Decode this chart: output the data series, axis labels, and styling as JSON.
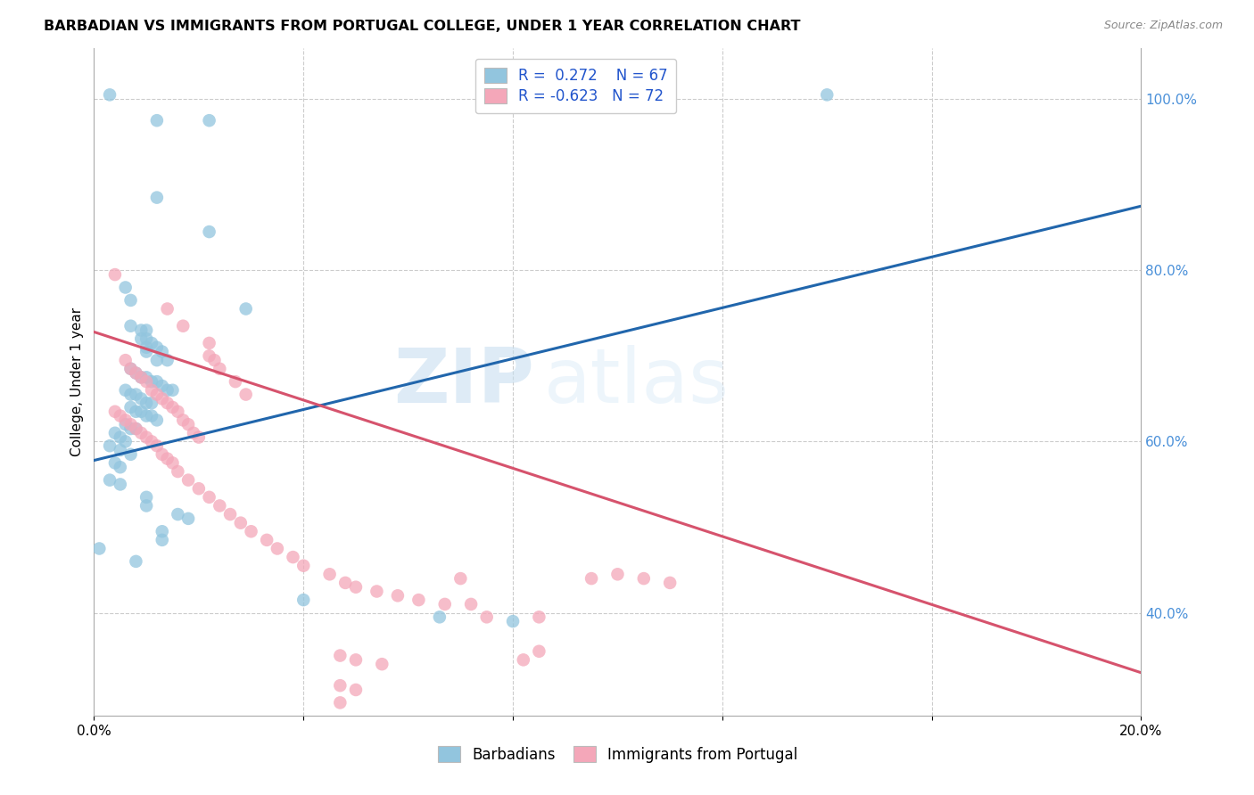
{
  "title": "BARBADIAN VS IMMIGRANTS FROM PORTUGAL COLLEGE, UNDER 1 YEAR CORRELATION CHART",
  "source": "Source: ZipAtlas.com",
  "ylabel": "College, Under 1 year",
  "x_min": 0.0,
  "x_max": 0.2,
  "y_min": 0.28,
  "y_max": 1.06,
  "x_ticks": [
    0.0,
    0.04,
    0.08,
    0.12,
    0.16,
    0.2
  ],
  "x_tick_labels": [
    "0.0%",
    "",
    "",
    "",
    "",
    "20.0%"
  ],
  "y_ticks_right": [
    0.4,
    0.6,
    0.8,
    1.0
  ],
  "y_tick_labels_right": [
    "40.0%",
    "60.0%",
    "80.0%",
    "100.0%"
  ],
  "legend_r1": "R =  0.272",
  "legend_n1": "N = 67",
  "legend_r2": "R = -0.623",
  "legend_n2": "N = 72",
  "blue_color": "#92c5de",
  "pink_color": "#f4a7b9",
  "blue_line_color": "#2166ac",
  "pink_line_color": "#d6536d",
  "watermark_zip": "ZIP",
  "watermark_atlas": "atlas",
  "blue_points": [
    [
      0.003,
      1.005
    ],
    [
      0.012,
      0.975
    ],
    [
      0.022,
      0.975
    ],
    [
      0.012,
      0.885
    ],
    [
      0.022,
      0.845
    ],
    [
      0.029,
      0.755
    ],
    [
      0.007,
      0.735
    ],
    [
      0.01,
      0.705
    ],
    [
      0.012,
      0.695
    ],
    [
      0.006,
      0.78
    ],
    [
      0.007,
      0.765
    ],
    [
      0.01,
      0.73
    ],
    [
      0.009,
      0.73
    ],
    [
      0.009,
      0.72
    ],
    [
      0.01,
      0.72
    ],
    [
      0.01,
      0.71
    ],
    [
      0.011,
      0.715
    ],
    [
      0.012,
      0.71
    ],
    [
      0.013,
      0.705
    ],
    [
      0.014,
      0.695
    ],
    [
      0.007,
      0.685
    ],
    [
      0.008,
      0.68
    ],
    [
      0.009,
      0.675
    ],
    [
      0.01,
      0.675
    ],
    [
      0.011,
      0.67
    ],
    [
      0.012,
      0.67
    ],
    [
      0.013,
      0.665
    ],
    [
      0.014,
      0.66
    ],
    [
      0.015,
      0.66
    ],
    [
      0.006,
      0.66
    ],
    [
      0.007,
      0.655
    ],
    [
      0.008,
      0.655
    ],
    [
      0.009,
      0.65
    ],
    [
      0.01,
      0.645
    ],
    [
      0.011,
      0.645
    ],
    [
      0.007,
      0.64
    ],
    [
      0.008,
      0.635
    ],
    [
      0.009,
      0.635
    ],
    [
      0.01,
      0.63
    ],
    [
      0.011,
      0.63
    ],
    [
      0.012,
      0.625
    ],
    [
      0.006,
      0.62
    ],
    [
      0.007,
      0.615
    ],
    [
      0.008,
      0.615
    ],
    [
      0.004,
      0.61
    ],
    [
      0.005,
      0.605
    ],
    [
      0.006,
      0.6
    ],
    [
      0.003,
      0.595
    ],
    [
      0.005,
      0.59
    ],
    [
      0.007,
      0.585
    ],
    [
      0.004,
      0.575
    ],
    [
      0.005,
      0.57
    ],
    [
      0.003,
      0.555
    ],
    [
      0.005,
      0.55
    ],
    [
      0.01,
      0.535
    ],
    [
      0.01,
      0.525
    ],
    [
      0.016,
      0.515
    ],
    [
      0.018,
      0.51
    ],
    [
      0.013,
      0.495
    ],
    [
      0.013,
      0.485
    ],
    [
      0.001,
      0.475
    ],
    [
      0.008,
      0.46
    ],
    [
      0.04,
      0.415
    ],
    [
      0.066,
      0.395
    ],
    [
      0.08,
      0.39
    ],
    [
      0.14,
      1.005
    ]
  ],
  "pink_points": [
    [
      0.004,
      0.795
    ],
    [
      0.014,
      0.755
    ],
    [
      0.017,
      0.735
    ],
    [
      0.022,
      0.715
    ],
    [
      0.022,
      0.7
    ],
    [
      0.023,
      0.695
    ],
    [
      0.024,
      0.685
    ],
    [
      0.027,
      0.67
    ],
    [
      0.029,
      0.655
    ],
    [
      0.006,
      0.695
    ],
    [
      0.007,
      0.685
    ],
    [
      0.008,
      0.68
    ],
    [
      0.009,
      0.675
    ],
    [
      0.01,
      0.67
    ],
    [
      0.011,
      0.66
    ],
    [
      0.012,
      0.655
    ],
    [
      0.013,
      0.65
    ],
    [
      0.014,
      0.645
    ],
    [
      0.015,
      0.64
    ],
    [
      0.016,
      0.635
    ],
    [
      0.017,
      0.625
    ],
    [
      0.018,
      0.62
    ],
    [
      0.019,
      0.61
    ],
    [
      0.02,
      0.605
    ],
    [
      0.004,
      0.635
    ],
    [
      0.005,
      0.63
    ],
    [
      0.006,
      0.625
    ],
    [
      0.007,
      0.62
    ],
    [
      0.008,
      0.615
    ],
    [
      0.009,
      0.61
    ],
    [
      0.01,
      0.605
    ],
    [
      0.011,
      0.6
    ],
    [
      0.012,
      0.595
    ],
    [
      0.013,
      0.585
    ],
    [
      0.014,
      0.58
    ],
    [
      0.015,
      0.575
    ],
    [
      0.016,
      0.565
    ],
    [
      0.018,
      0.555
    ],
    [
      0.02,
      0.545
    ],
    [
      0.022,
      0.535
    ],
    [
      0.024,
      0.525
    ],
    [
      0.026,
      0.515
    ],
    [
      0.028,
      0.505
    ],
    [
      0.03,
      0.495
    ],
    [
      0.033,
      0.485
    ],
    [
      0.035,
      0.475
    ],
    [
      0.038,
      0.465
    ],
    [
      0.04,
      0.455
    ],
    [
      0.045,
      0.445
    ],
    [
      0.048,
      0.435
    ],
    [
      0.05,
      0.43
    ],
    [
      0.054,
      0.425
    ],
    [
      0.058,
      0.42
    ],
    [
      0.062,
      0.415
    ],
    [
      0.067,
      0.41
    ],
    [
      0.07,
      0.44
    ],
    [
      0.072,
      0.41
    ],
    [
      0.075,
      0.395
    ],
    [
      0.085,
      0.395
    ],
    [
      0.095,
      0.44
    ],
    [
      0.1,
      0.445
    ],
    [
      0.105,
      0.44
    ],
    [
      0.11,
      0.435
    ],
    [
      0.047,
      0.35
    ],
    [
      0.05,
      0.345
    ],
    [
      0.055,
      0.34
    ],
    [
      0.082,
      0.345
    ],
    [
      0.085,
      0.355
    ],
    [
      0.047,
      0.315
    ],
    [
      0.05,
      0.31
    ],
    [
      0.047,
      0.295
    ]
  ],
  "blue_line_x": [
    0.0,
    0.2
  ],
  "blue_line_y": [
    0.578,
    0.875
  ],
  "pink_line_x": [
    0.0,
    0.2
  ],
  "pink_line_y": [
    0.728,
    0.33
  ]
}
